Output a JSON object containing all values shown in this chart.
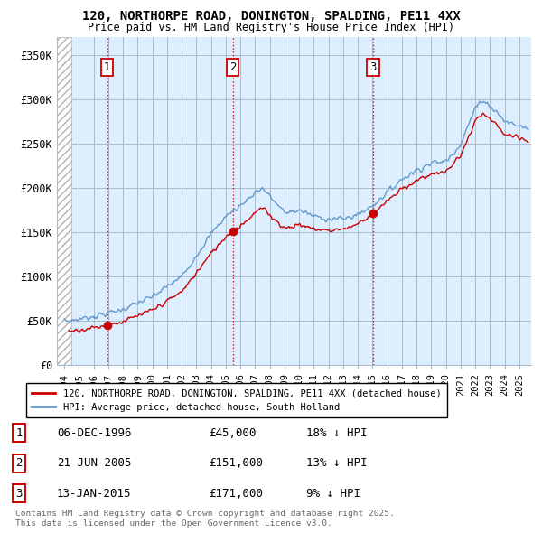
{
  "title_line1": "120, NORTHORPE ROAD, DONINGTON, SPALDING, PE11 4XX",
  "title_line2": "Price paid vs. HM Land Registry's House Price Index (HPI)",
  "legend_label_red": "120, NORTHORPE ROAD, DONINGTON, SPALDING, PE11 4XX (detached house)",
  "legend_label_blue": "HPI: Average price, detached house, South Holland",
  "transactions": [
    {
      "num": 1,
      "date": "06-DEC-1996",
      "price": "£45,000",
      "pct": "18% ↓ HPI",
      "x_year": 1996.92,
      "y_val": 45000
    },
    {
      "num": 2,
      "date": "21-JUN-2005",
      "price": "£151,000",
      "pct": "13% ↓ HPI",
      "x_year": 2005.47,
      "y_val": 151000
    },
    {
      "num": 3,
      "date": "13-JAN-2015",
      "price": "£171,000",
      "pct": "9% ↓ HPI",
      "x_year": 2015.04,
      "y_val": 171000
    }
  ],
  "footer_line1": "Contains HM Land Registry data © Crown copyright and database right 2025.",
  "footer_line2": "This data is licensed under the Open Government Licence v3.0.",
  "ylim": [
    0,
    370000
  ],
  "yticks": [
    0,
    50000,
    100000,
    150000,
    200000,
    250000,
    300000,
    350000
  ],
  "ytick_labels": [
    "£0",
    "£50K",
    "£100K",
    "£150K",
    "£200K",
    "£250K",
    "£300K",
    "£350K"
  ],
  "xlim_start": 1993.5,
  "xlim_end": 2025.8,
  "hatch_end": 1994.5,
  "color_red": "#cc0000",
  "color_blue": "#6699cc",
  "color_hatch": "#aaaaaa",
  "color_vline": "#cc0000",
  "bg_color": "#ffffff",
  "plot_bg_color": "#ddeeff",
  "grid_color": "#aabbcc"
}
